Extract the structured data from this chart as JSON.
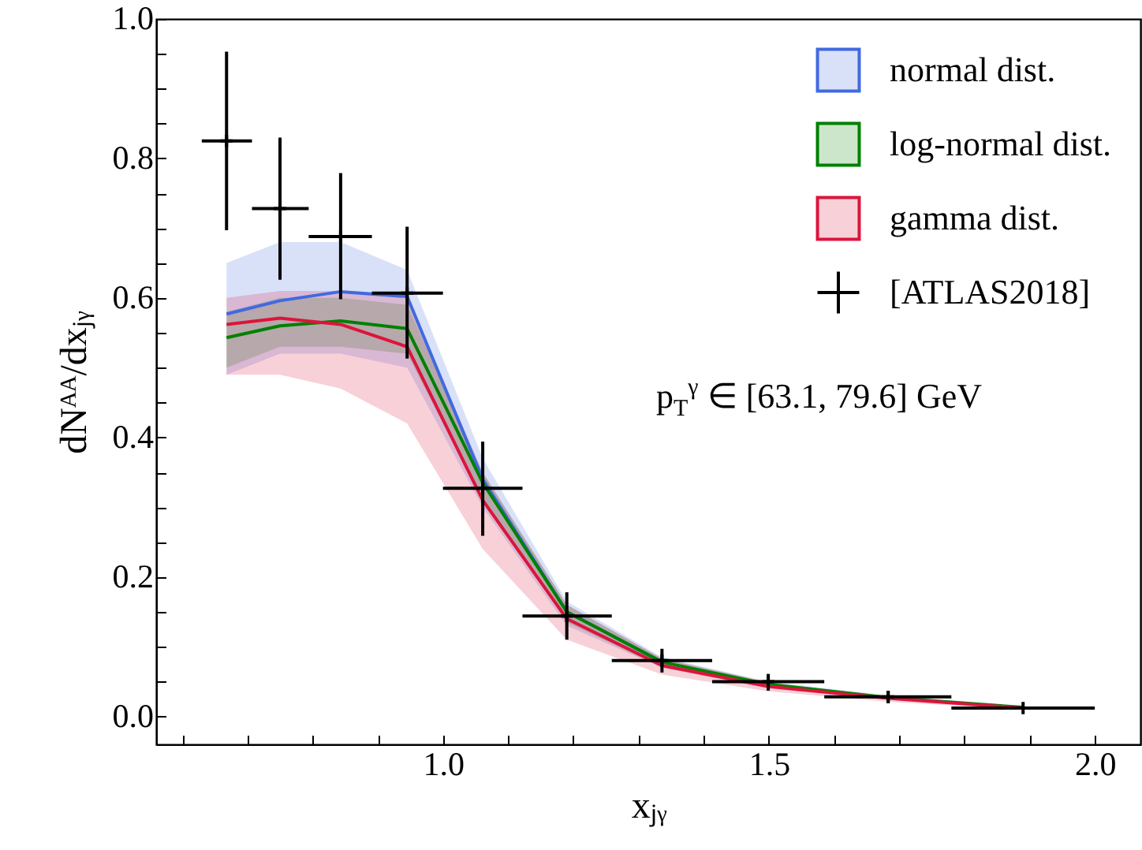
{
  "chart_data": {
    "type": "line",
    "xlabel": "xⱼᵧ",
    "ylabel": "dNᴬᴬ/dxⱼᵧ",
    "annotations": [
      "p$_{T}$$^{γ}$ ∈ [63.1, 79.6] GeV"
    ],
    "xlim": [
      0.56,
      2.07
    ],
    "xticks": [
      {
        "value": 0.6,
        "label": null
      },
      {
        "value": 0.7,
        "label": null
      },
      {
        "value": 0.8,
        "label": null
      },
      {
        "value": 0.9,
        "label": null
      },
      {
        "value": 1.0,
        "label": "1.0"
      },
      {
        "value": 1.1,
        "label": null
      },
      {
        "value": 1.2,
        "label": null
      },
      {
        "value": 1.3,
        "label": null
      },
      {
        "value": 1.4,
        "label": null
      },
      {
        "value": 1.5,
        "label": "1.5"
      },
      {
        "value": 1.6,
        "label": null
      },
      {
        "value": 1.7,
        "label": null
      },
      {
        "value": 1.8,
        "label": null
      },
      {
        "value": 1.9,
        "label": null
      },
      {
        "value": 2.0,
        "label": "2.0"
      }
    ],
    "ylim": [
      -0.04,
      1.0
    ],
    "yticks": [
      {
        "value": 0,
        "label": "0.0"
      },
      {
        "value": 0.05,
        "label": null
      },
      {
        "value": 0.1,
        "label": null
      },
      {
        "value": 0.15,
        "label": null
      },
      {
        "value": 0.2,
        "label": "0.2"
      },
      {
        "value": 0.25,
        "label": null
      },
      {
        "value": 0.3,
        "label": null
      },
      {
        "value": 0.35,
        "label": null
      },
      {
        "value": 0.4,
        "label": "0.4"
      },
      {
        "value": 0.45,
        "label": null
      },
      {
        "value": 0.5,
        "label": null
      },
      {
        "value": 0.55,
        "label": null
      },
      {
        "value": 0.6,
        "label": "0.6"
      },
      {
        "value": 0.65,
        "label": null
      },
      {
        "value": 0.7,
        "label": null
      },
      {
        "value": 0.75,
        "label": null
      },
      {
        "value": 0.8,
        "label": "0.8"
      },
      {
        "value": 0.85,
        "label": null
      },
      {
        "value": 0.9,
        "label": null
      },
      {
        "value": 0.95,
        "label": null
      },
      {
        "value": 1.0,
        "label": "1.0"
      }
    ],
    "x": [
      0.668,
      0.75,
      0.843,
      0.945,
      1.061,
      1.19,
      1.336,
      1.499,
      1.683,
      1.89
    ],
    "legend": "top right",
    "line_style": "solid",
    "series": [
      {
        "name": "normal dist.",
        "color": "#4169e1",
        "values": [
          0.577,
          0.596,
          0.609,
          0.602,
          0.34,
          0.15,
          0.078,
          null,
          null,
          null
        ],
        "lower": [
          0.49,
          0.52,
          0.52,
          0.5,
          0.3,
          0.13,
          0.07,
          0.04,
          0.024,
          0.011
        ],
        "upper": [
          0.65,
          0.68,
          0.68,
          0.64,
          0.37,
          0.165,
          0.085,
          0.05,
          0.03,
          0.015
        ]
      },
      {
        "name": "log-normal dist.",
        "color": "#008000",
        "values": [
          0.543,
          0.56,
          0.567,
          0.556,
          0.335,
          0.15,
          0.078,
          0.046,
          0.027,
          0.013
        ],
        "lower": [
          0.5,
          0.53,
          0.53,
          0.52,
          0.31,
          0.135,
          0.07,
          0.042,
          0.025,
          0.012
        ],
        "upper": [
          0.58,
          0.6,
          0.6,
          0.59,
          0.35,
          0.16,
          0.083,
          0.049,
          0.029,
          0.014
        ]
      },
      {
        "name": "gamma dist.",
        "color": "#dc143c",
        "values": [
          0.562,
          0.571,
          0.562,
          0.53,
          0.31,
          0.14,
          0.073,
          0.043,
          0.026,
          0.012
        ],
        "lower": [
          0.49,
          0.49,
          0.47,
          0.42,
          0.24,
          0.11,
          0.06,
          0.036,
          0.021,
          0.01
        ],
        "upper": [
          0.6,
          0.61,
          0.61,
          0.6,
          0.35,
          0.16,
          0.083,
          0.049,
          0.029,
          0.014
        ]
      },
      {
        "name": "[ATLAS2018]",
        "type": "scatter",
        "color": "#000000",
        "marker": "cross",
        "values": [
          0.825,
          0.728,
          0.688,
          0.607,
          0.327,
          0.144,
          0.08,
          0.05,
          0.028,
          0.012
        ],
        "errors": [
          [
            0.697,
            0.953
          ],
          [
            0.626,
            0.83
          ],
          [
            0.598,
            0.779
          ],
          [
            0.513,
            0.702
          ],
          [
            0.259,
            0.394
          ],
          [
            0.11,
            0.178
          ],
          [
            0.063,
            0.097
          ],
          [
            0.037,
            0.061
          ],
          [
            0.019,
            0.036
          ],
          null
        ],
        "xerrors": [
          [
            0.63,
            0.707
          ],
          [
            0.707,
            0.794
          ],
          [
            0.794,
            0.891
          ],
          [
            0.891,
            1.0
          ],
          [
            1.0,
            1.122
          ],
          [
            1.122,
            1.259
          ],
          [
            1.259,
            1.413
          ],
          [
            1.413,
            1.585
          ],
          [
            1.585,
            1.78
          ],
          [
            1.78,
            2.0
          ]
        ]
      }
    ]
  }
}
